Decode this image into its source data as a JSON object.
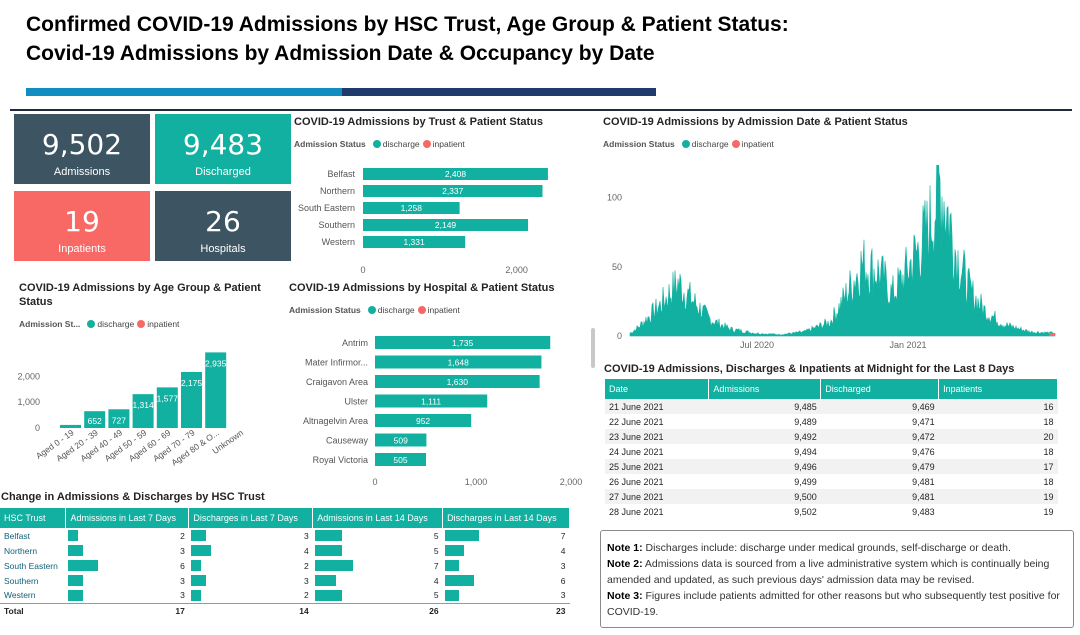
{
  "title": {
    "line1": "Confirmed COVID-19 Admissions by HSC Trust, Age Group & Patient Status:",
    "line2": "Covid-19 Admissions by Admission Date & Occupancy by Date"
  },
  "colors": {
    "discharge": "#12b0a0",
    "inpatient": "#f86864",
    "dark": "#3d5463"
  },
  "kpis": {
    "admissions": {
      "value": "9,502",
      "label": "Admissions"
    },
    "discharged": {
      "value": "9,483",
      "label": "Discharged"
    },
    "inpatients": {
      "value": "19",
      "label": "Inpatients"
    },
    "hospitals": {
      "value": "26",
      "label": "Hospitals"
    }
  },
  "legend": {
    "title": "Admission Status",
    "title_short": "Admission St...",
    "discharge": "discharge",
    "inpatient": "inpatient"
  },
  "trust_chart": {
    "title": "COVID-19 Admissions by Trust & Patient Status",
    "chart_data": {
      "type": "bar",
      "orientation": "horizontal",
      "categories": [
        "Belfast",
        "Northern",
        "South Eastern",
        "Southern",
        "Western"
      ],
      "series": [
        {
          "name": "discharge",
          "values": [
            2408,
            2337,
            1258,
            2149,
            1331
          ]
        }
      ],
      "labels": [
        "2,408",
        "2,337",
        "1,258",
        "2,149",
        "1,331"
      ],
      "xticks": [
        "0",
        "2,000"
      ],
      "xlim": [
        0,
        2500
      ]
    }
  },
  "date_chart": {
    "title": "COVID-19 Admissions by Admission Date & Patient Status",
    "chart_data": {
      "type": "area",
      "yticks": [
        "100",
        "50",
        "0"
      ],
      "ylim": [
        0,
        115
      ],
      "xticks": [
        "Jul 2020",
        "Jan 2021"
      ],
      "x": [
        "2020-03",
        "2020-04",
        "2020-05",
        "2020-06",
        "2020-08",
        "2020-09",
        "2020-10",
        "2020-11",
        "2020-12",
        "2021-01",
        "2021-02",
        "2021-03",
        "2021-04",
        "2021-06"
      ],
      "values": [
        5,
        38,
        18,
        4,
        2,
        8,
        45,
        40,
        60,
        110,
        55,
        15,
        4,
        2
      ]
    }
  },
  "age_chart": {
    "title": "COVID-19 Admissions by Age Group & Patient Status",
    "chart_data": {
      "type": "bar",
      "categories": [
        "Aged 0 - 19",
        "Aged 20 - 39",
        "Aged 40 - 49",
        "Aged 50 - 59",
        "Aged 60 - 69",
        "Aged 70 - 79",
        "Aged 80 & O...",
        "Unknown"
      ],
      "series": [
        {
          "name": "discharge",
          "values": [
            120,
            652,
            727,
            1314,
            1577,
            2175,
            2935,
            0
          ]
        }
      ],
      "labels": [
        "",
        "652",
        "727",
        "1,314",
        "1,577",
        "2,175",
        "2,935",
        ""
      ],
      "yticks": [
        "2,000",
        "1,000",
        "0"
      ],
      "ylim": [
        0,
        3300
      ]
    }
  },
  "hospital_chart": {
    "title": "COVID-19 Admissions by Hospital & Patient Status",
    "chart_data": {
      "type": "bar",
      "orientation": "horizontal",
      "categories": [
        "Antrim",
        "Mater Infirmor...",
        "Craigavon Area",
        "Ulster",
        "Altnagelvin Area",
        "Causeway",
        "Royal Victoria"
      ],
      "series": [
        {
          "name": "discharge",
          "values": [
            1735,
            1648,
            1630,
            1111,
            952,
            509,
            505
          ]
        }
      ],
      "labels": [
        "1,735",
        "1,648",
        "1,630",
        "1,111",
        "952",
        "509",
        "505"
      ],
      "xticks": [
        "0",
        "1,000",
        "2,000"
      ],
      "xlim": [
        0,
        2000
      ]
    }
  },
  "days_table": {
    "title": "COVID-19 Admissions, Discharges & Inpatients at Midnight for the Last 8 Days",
    "headers": [
      "Date",
      "Admissions",
      "Discharged",
      "Inpatients"
    ],
    "rows": [
      [
        "21 June 2021",
        "9,485",
        "9,469",
        "16"
      ],
      [
        "22 June 2021",
        "9,489",
        "9,471",
        "18"
      ],
      [
        "23 June 2021",
        "9,492",
        "9,472",
        "20"
      ],
      [
        "24 June 2021",
        "9,494",
        "9,476",
        "18"
      ],
      [
        "25 June 2021",
        "9,496",
        "9,479",
        "17"
      ],
      [
        "26 June 2021",
        "9,499",
        "9,481",
        "18"
      ],
      [
        "27 June 2021",
        "9,500",
        "9,481",
        "19"
      ],
      [
        "28 June 2021",
        "9,502",
        "9,483",
        "19"
      ]
    ]
  },
  "change_table": {
    "title": "Change in Admissions & Discharges by HSC Trust",
    "headers": [
      "HSC Trust",
      "Admissions in Last 7 Days",
      "Discharges in Last 7 Days",
      "Admissions in Last 14 Days",
      "Discharges in Last 14 Days"
    ],
    "rows": [
      {
        "trust": "Belfast",
        "values": [
          2,
          3,
          5,
          7
        ]
      },
      {
        "trust": "Northern",
        "values": [
          3,
          4,
          5,
          4
        ]
      },
      {
        "trust": "South Eastern",
        "values": [
          6,
          2,
          7,
          3
        ]
      },
      {
        "trust": "Southern",
        "values": [
          3,
          3,
          4,
          6
        ]
      },
      {
        "trust": "Western",
        "values": [
          3,
          2,
          5,
          3
        ]
      }
    ],
    "total_label": "Total",
    "totals": [
      "17",
      "14",
      "26",
      "23"
    ]
  },
  "notes": [
    {
      "label": "Note 1:",
      "text": " Discharges include: discharge under medical grounds, self-discharge or death."
    },
    {
      "label": "Note 2:",
      "text": " Admissions data is sourced from a live administrative system which is continually being amended and updated, as such previous days' admission data may be revised."
    },
    {
      "label": "Note 3:",
      "text": " Figures include patients admitted for other reasons but who subsequently test positive for COVID-19."
    }
  ]
}
